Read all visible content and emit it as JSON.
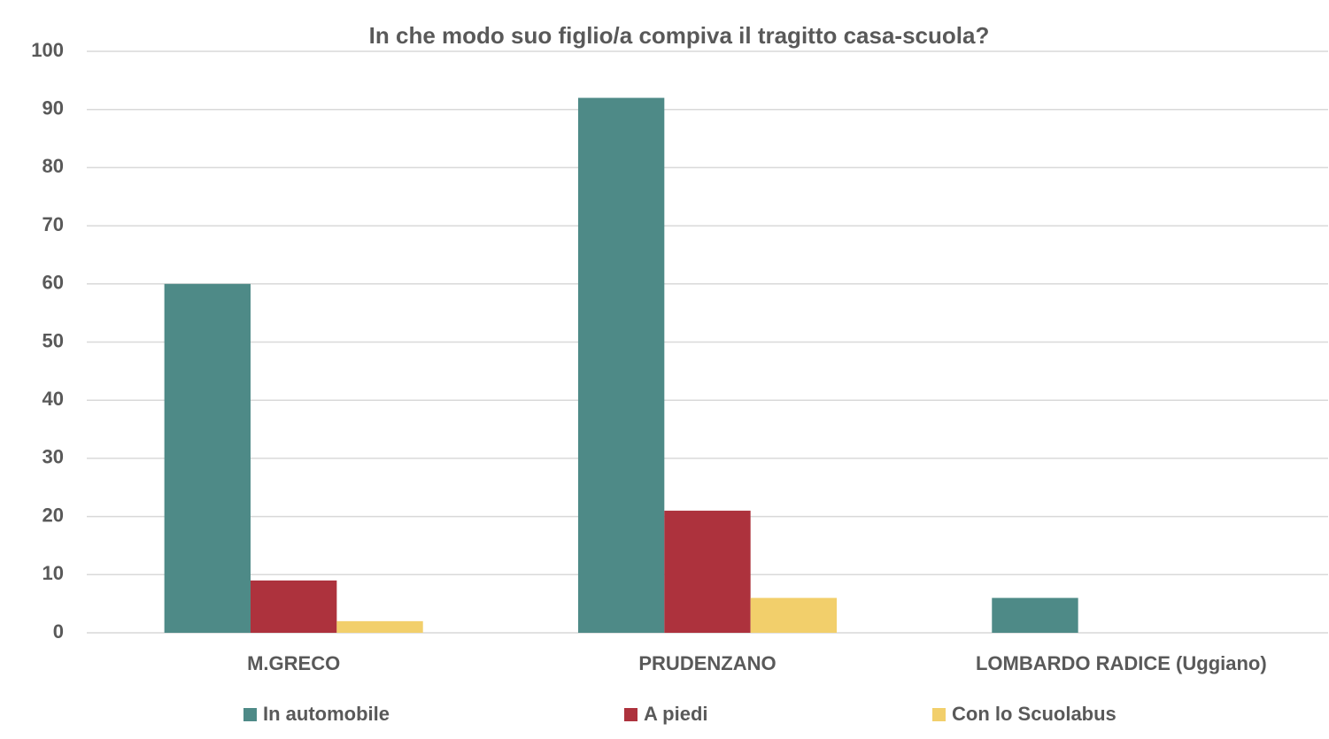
{
  "chart_data": {
    "type": "bar",
    "title": "In che modo suo figlio/a compiva il tragitto casa-scuola?",
    "categories": [
      "M.GRECO",
      "PRUDENZANO",
      "LOMBARDO RADICE (Uggiano)"
    ],
    "series": [
      {
        "name": "In automobile",
        "color": "#4e8a87",
        "values": [
          60,
          92,
          6
        ]
      },
      {
        "name": "A piedi",
        "color": "#ad323d",
        "values": [
          9,
          21,
          0
        ]
      },
      {
        "name": "Con lo Scuolabus",
        "color": "#f2cf6b",
        "values": [
          2,
          6,
          0
        ]
      }
    ],
    "ylim": [
      0,
      100
    ],
    "yticks": [
      0,
      10,
      20,
      30,
      40,
      50,
      60,
      70,
      80,
      90,
      100
    ],
    "grid": true,
    "legend": "bottom"
  }
}
